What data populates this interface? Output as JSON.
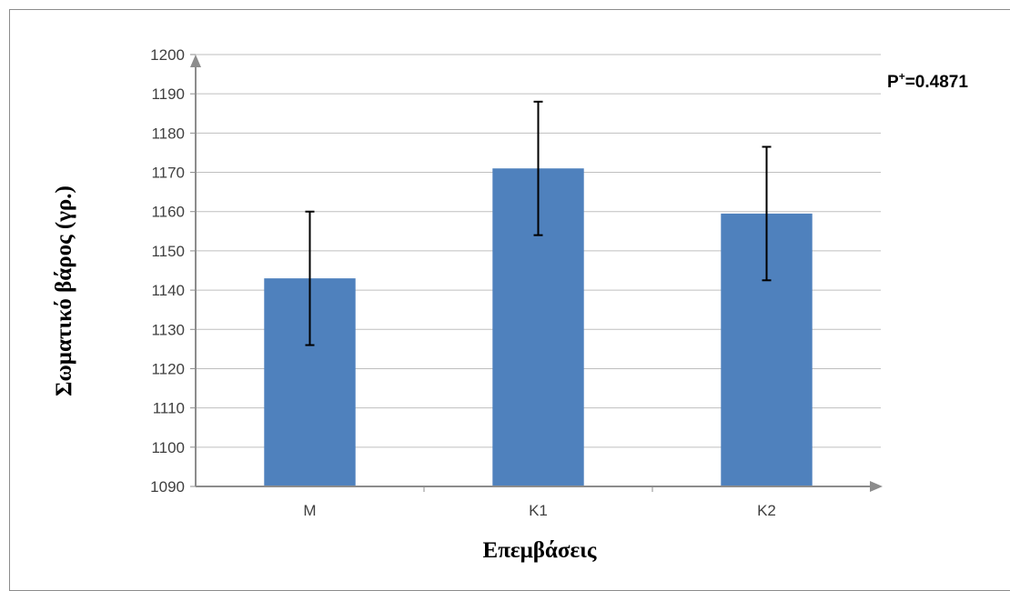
{
  "chart_data": {
    "type": "bar",
    "categories": [
      "M",
      "K1",
      "K2"
    ],
    "values": [
      1143,
      1171,
      1159.5
    ],
    "error": [
      17,
      17,
      17
    ],
    "ylim": [
      1090,
      1200
    ],
    "ytick_step": 10,
    "ylabel": "Σωματικό  βάρος  (γρ.)",
    "xlabel": "Επεμβάσεις",
    "annotation": {
      "prefix": "P",
      "sup": "+",
      "text": "=0.4871"
    },
    "grid": true,
    "bar_color": "#4f81bd"
  }
}
